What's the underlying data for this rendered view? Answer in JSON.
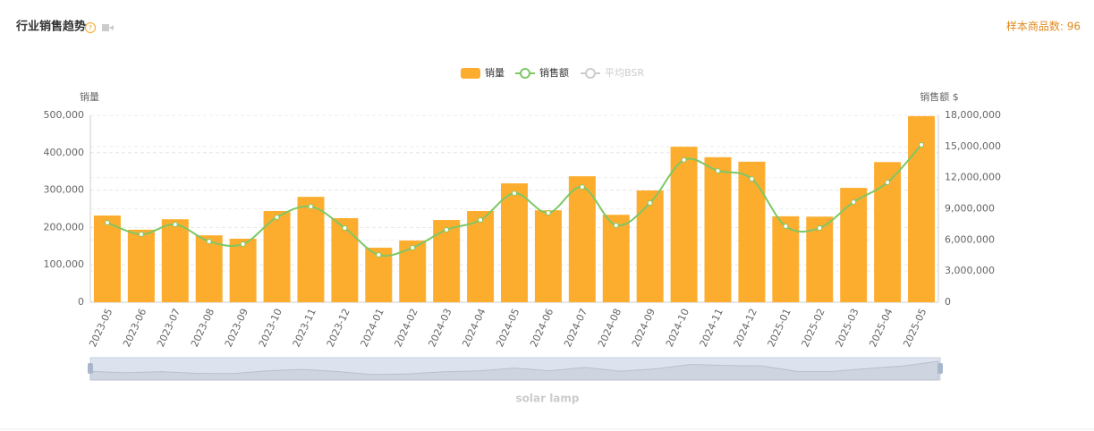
{
  "chart_data": {
    "type": "bar-line",
    "title": "行业销售趋势",
    "sample_label": "样本商品数: 96",
    "y_label": "销量",
    "y2_label": "销售额 $",
    "caption": "solar lamp",
    "legend_inactive": [
      "平均BSR"
    ],
    "categories": [
      "2023-05",
      "2023-06",
      "2023-07",
      "2023-08",
      "2023-09",
      "2023-10",
      "2023-11",
      "2023-12",
      "2024-01",
      "2024-02",
      "2024-03",
      "2024-04",
      "2024-05",
      "2024-06",
      "2024-07",
      "2024-08",
      "2024-09",
      "2024-10",
      "2024-11",
      "2024-12",
      "2025-01",
      "2025-02",
      "2025-03",
      "2025-04",
      "2025-05"
    ],
    "series": [
      {
        "name": "销量",
        "color": "#fdad2e",
        "kind": "bar",
        "values": [
          232000,
          194000,
          222000,
          179000,
          170000,
          244000,
          282000,
          225000,
          146000,
          165000,
          220000,
          244000,
          318000,
          246000,
          337000,
          234000,
          299000,
          416000,
          388000,
          376000,
          230000,
          229000,
          306000,
          375000,
          498000
        ]
      },
      {
        "name": "销售额",
        "color": "#7dc765",
        "kind": "line",
        "axis": "y2",
        "values": [
          7660000,
          6550000,
          7490000,
          5860000,
          5600000,
          8180000,
          9210000,
          7150000,
          4560000,
          5250000,
          6980000,
          7920000,
          10500000,
          8610000,
          11100000,
          7410000,
          9560000,
          13700000,
          12660000,
          11880000,
          7320000,
          7150000,
          9650000,
          11540000,
          15160000
        ]
      }
    ],
    "ylim": [
      0,
      500000
    ],
    "yticks": [
      0,
      {
        "value": 100000,
        "label": "100,000"
      },
      {
        "value": 200000,
        "label": "200,000"
      },
      {
        "value": 300000,
        "label": "300,000"
      },
      {
        "value": 400000,
        "label": "400,000"
      },
      {
        "value": 500000,
        "label": "500,000"
      }
    ],
    "y2lim": [
      0,
      18000000
    ],
    "y2ticks": [
      0,
      {
        "value": 3000000,
        "label": "3,000,000"
      },
      {
        "value": 6000000,
        "label": "6,000,000"
      },
      {
        "value": 9000000,
        "label": "9,000,000"
      },
      {
        "value": 12000000,
        "label": "12,000,000"
      },
      {
        "value": 15000000,
        "label": "15,000,000"
      },
      {
        "value": 18000000,
        "label": "18,000,000"
      }
    ],
    "grid": true
  }
}
